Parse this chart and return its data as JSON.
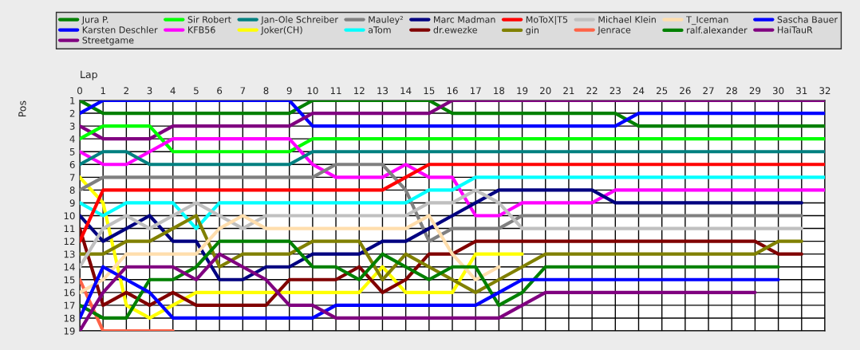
{
  "chart_data": {
    "type": "line",
    "xlabel": "Lap",
    "ylabel": "Pos",
    "x": [
      0,
      1,
      2,
      3,
      4,
      5,
      6,
      7,
      8,
      9,
      10,
      11,
      12,
      13,
      14,
      15,
      16,
      17,
      18,
      19,
      20,
      21,
      22,
      23,
      24,
      25,
      26,
      27,
      28,
      29,
      30,
      31,
      32
    ],
    "xlim": [
      0,
      32
    ],
    "xticks": [
      0,
      1,
      2,
      3,
      4,
      5,
      6,
      7,
      8,
      9,
      10,
      11,
      12,
      13,
      14,
      15,
      16,
      17,
      18,
      19,
      20,
      21,
      22,
      23,
      24,
      25,
      26,
      27,
      28,
      29,
      30,
      31,
      32
    ],
    "ylim": [
      19,
      1
    ],
    "yticks": [
      1,
      2,
      3,
      4,
      5,
      6,
      7,
      8,
      9,
      10,
      11,
      12,
      13,
      14,
      15,
      16,
      17,
      18,
      19
    ],
    "grid": true,
    "legend": "top",
    "marker": "none",
    "line_style": "solid",
    "series": [
      {
        "name": "Jura P.",
        "color": "#008000",
        "values": [
          1,
          2,
          2,
          2,
          2,
          2,
          2,
          2,
          2,
          2,
          1,
          1,
          1,
          1,
          1,
          1,
          2,
          2,
          2,
          2,
          2,
          2,
          2,
          2,
          3,
          3,
          3,
          3,
          3,
          3,
          3,
          3,
          3
        ]
      },
      {
        "name": "Karsten Deschler",
        "color": "#0000ff",
        "values": [
          2,
          1,
          1,
          1,
          1,
          1,
          1,
          1,
          1,
          1,
          3,
          3,
          3,
          3,
          3,
          3,
          3,
          3,
          3,
          3,
          3,
          3,
          3,
          3,
          2,
          2,
          2,
          2,
          2,
          2,
          2,
          2,
          2
        ]
      },
      {
        "name": "Streetgame",
        "color": "#800080",
        "values": [
          3,
          4,
          4,
          4,
          3,
          3,
          3,
          3,
          3,
          3,
          2,
          2,
          2,
          2,
          2,
          2,
          1,
          1,
          1,
          1,
          1,
          1,
          1,
          1,
          1,
          1,
          1,
          1,
          1,
          1,
          1,
          1,
          1
        ]
      },
      {
        "name": "Sir Robert",
        "color": "#00ff00",
        "values": [
          4,
          3,
          3,
          3,
          5,
          5,
          5,
          5,
          5,
          5,
          4,
          4,
          4,
          4,
          4,
          4,
          4,
          4,
          4,
          4,
          4,
          4,
          4,
          4,
          4,
          4,
          4,
          4,
          4,
          4,
          4,
          4,
          4
        ]
      },
      {
        "name": "KFB56",
        "color": "#ff00ff",
        "values": [
          5,
          6,
          6,
          5,
          4,
          4,
          4,
          4,
          4,
          4,
          6,
          7,
          7,
          7,
          6,
          7,
          7,
          10,
          10,
          9,
          9,
          9,
          9,
          8,
          8,
          8,
          8,
          8,
          8,
          8,
          8,
          8,
          8
        ]
      },
      {
        "name": "Jan-Ole Schreiber",
        "color": "#008080",
        "values": [
          6,
          5,
          5,
          6,
          6,
          6,
          6,
          6,
          6,
          6,
          5,
          5,
          5,
          5,
          5,
          5,
          5,
          5,
          5,
          5,
          5,
          5,
          5,
          5,
          5,
          5,
          5,
          5,
          5,
          5,
          5,
          5,
          5
        ]
      },
      {
        "name": "Joker(CH)",
        "color": "#ffff00",
        "values": [
          7,
          9,
          17,
          18,
          17,
          16,
          16,
          16,
          16,
          16,
          16,
          16,
          16,
          14,
          16,
          16,
          16,
          13,
          13,
          13,
          null,
          null,
          null,
          null,
          null,
          null,
          null,
          null,
          null,
          null,
          null,
          null,
          null
        ]
      },
      {
        "name": "Mauley²",
        "color": "#808080",
        "values": [
          8,
          7,
          7,
          7,
          7,
          7,
          7,
          7,
          7,
          7,
          7,
          6,
          6,
          6,
          8,
          12,
          11,
          11,
          11,
          10,
          10,
          10,
          10,
          10,
          10,
          10,
          10,
          10,
          10,
          10,
          10,
          10,
          null
        ]
      },
      {
        "name": "aTom",
        "color": "#00ffff",
        "values": [
          9,
          10,
          9,
          9,
          9,
          11,
          9,
          9,
          9,
          9,
          9,
          9,
          9,
          9,
          9,
          8,
          8,
          7,
          7,
          7,
          7,
          7,
          7,
          7,
          7,
          7,
          7,
          7,
          7,
          7,
          7,
          7,
          7
        ]
      },
      {
        "name": "Marc Madman",
        "color": "#000080",
        "values": [
          10,
          12,
          11,
          10,
          12,
          12,
          15,
          15,
          14,
          14,
          13,
          13,
          13,
          12,
          12,
          11,
          10,
          9,
          8,
          8,
          8,
          8,
          8,
          9,
          9,
          9,
          9,
          9,
          9,
          9,
          9,
          9,
          null
        ]
      },
      {
        "name": "dr.ewezke",
        "color": "#800000",
        "values": [
          11,
          17,
          16,
          17,
          16,
          17,
          17,
          17,
          17,
          15,
          15,
          15,
          14,
          16,
          15,
          13,
          13,
          12,
          12,
          12,
          12,
          12,
          12,
          12,
          12,
          12,
          12,
          12,
          12,
          12,
          13,
          13,
          null
        ]
      },
      {
        "name": "MoToX|T5",
        "color": "#ff0000",
        "values": [
          12,
          8,
          8,
          8,
          8,
          8,
          8,
          8,
          8,
          8,
          8,
          8,
          8,
          8,
          7,
          6,
          6,
          6,
          6,
          6,
          6,
          6,
          6,
          6,
          6,
          6,
          6,
          6,
          6,
          6,
          6,
          6,
          6
        ]
      },
      {
        "name": "gin",
        "color": "#808000",
        "values": [
          13,
          13,
          12,
          12,
          11,
          10,
          14,
          13,
          13,
          13,
          12,
          12,
          12,
          15,
          13,
          14,
          15,
          16,
          15,
          14,
          13,
          13,
          13,
          13,
          13,
          13,
          13,
          13,
          13,
          13,
          12,
          12,
          null
        ]
      },
      {
        "name": "Michael Klein",
        "color": "#c0c0c0",
        "values": [
          14,
          11,
          10,
          11,
          10,
          9,
          10,
          11,
          10,
          10,
          10,
          10,
          10,
          10,
          10,
          9,
          9,
          8,
          9,
          11,
          11,
          11,
          11,
          11,
          11,
          11,
          11,
          11,
          11,
          11,
          11,
          11,
          null
        ]
      },
      {
        "name": "Jenrace",
        "color": "#ff6347",
        "values": [
          15,
          19,
          19,
          19,
          19,
          null,
          null,
          null,
          null,
          null,
          null,
          null,
          null,
          null,
          null,
          null,
          null,
          null,
          null,
          null,
          null,
          null,
          null,
          null,
          null,
          null,
          null,
          null,
          null,
          null,
          null,
          null,
          null
        ]
      },
      {
        "name": "T_Iceman",
        "color": "#ffdead",
        "values": [
          16,
          15,
          13,
          13,
          13,
          13,
          11,
          10,
          11,
          11,
          11,
          11,
          11,
          11,
          11,
          10,
          13,
          15,
          14,
          null,
          null,
          null,
          null,
          null,
          null,
          null,
          null,
          null,
          null,
          null,
          null,
          null,
          null
        ]
      },
      {
        "name": "ralf.alexander",
        "color": "#008000",
        "values": [
          17,
          18,
          18,
          15,
          15,
          14,
          12,
          12,
          12,
          12,
          14,
          14,
          15,
          13,
          14,
          15,
          14,
          14,
          17,
          16,
          14,
          14,
          14,
          14,
          14,
          14,
          14,
          14,
          14,
          14,
          14,
          null,
          null
        ]
      },
      {
        "name": "Sascha Bauer",
        "color": "#0000ff",
        "values": [
          18,
          14,
          15,
          16,
          18,
          18,
          18,
          18,
          18,
          18,
          18,
          17,
          17,
          17,
          17,
          17,
          17,
          17,
          16,
          15,
          15,
          15,
          15,
          15,
          15,
          15,
          15,
          15,
          15,
          15,
          15,
          null,
          null
        ]
      },
      {
        "name": "HaiTauR",
        "color": "#800080",
        "values": [
          19,
          16,
          14,
          14,
          14,
          15,
          13,
          14,
          15,
          17,
          17,
          18,
          18,
          18,
          18,
          18,
          18,
          18,
          18,
          17,
          16,
          16,
          16,
          16,
          16,
          16,
          16,
          16,
          16,
          16,
          null,
          null,
          null
        ]
      }
    ]
  }
}
